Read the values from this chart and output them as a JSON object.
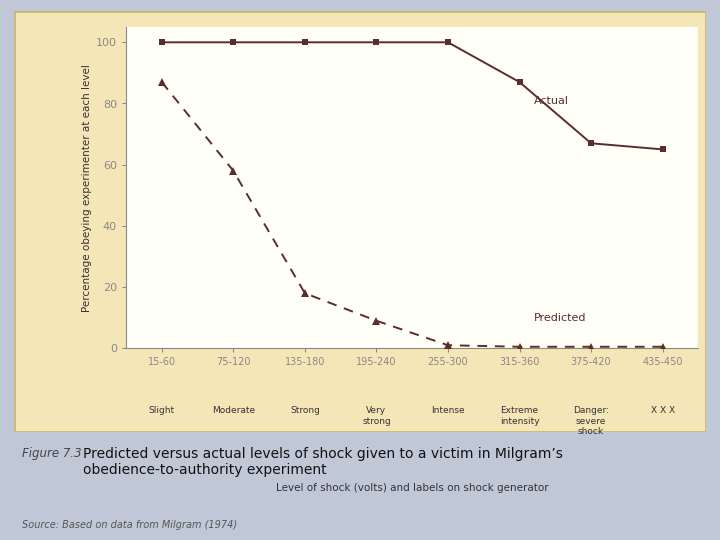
{
  "x_positions": [
    0,
    1,
    2,
    3,
    4,
    5,
    6,
    7
  ],
  "x_labels_top": [
    "15-60",
    "75-120",
    "135-180",
    "195-240",
    "255-300",
    "315-360",
    "375-420",
    "435-450"
  ],
  "x_labels_bottom": [
    "Slight",
    "Moderate",
    "Strong",
    "Very\nstrong",
    "Intense",
    "Extreme\nintensity",
    "Danger:\nsevere\nshock",
    "X X X"
  ],
  "actual_y": [
    100,
    100,
    100,
    100,
    100,
    87,
    67,
    65
  ],
  "actual_x": [
    0,
    1,
    2,
    3,
    4,
    5,
    6,
    7
  ],
  "predicted_y": [
    87,
    58,
    18,
    9,
    1,
    0.5,
    0.5,
    0.5
  ],
  "predicted_x": [
    0,
    1,
    2,
    3,
    4,
    5,
    6,
    7
  ],
  "ylabel": "Percentage obeying experimenter at each level",
  "xlabel": "Level of shock (volts) and labels on shock generator",
  "actual_label": "Actual",
  "predicted_label": "Predicted",
  "line_color": "#5a2d2d",
  "bg_color": "#fffff8",
  "outer_bg": "#f5e6b8",
  "caption_figure": "Figure 7.3",
  "caption_text": "Predicted versus actual levels of shock given to a victim in Milgram’s obedience-to-authority experiment",
  "source_text": "Source: Based on data from Milgram (1974)",
  "ylim": [
    0,
    105
  ],
  "yticks": [
    0,
    20,
    40,
    60,
    80,
    100
  ],
  "outer_border_color": "#c8b870",
  "caption_bg": "#b8bfcc",
  "fig_bg": "#c0c8d8"
}
